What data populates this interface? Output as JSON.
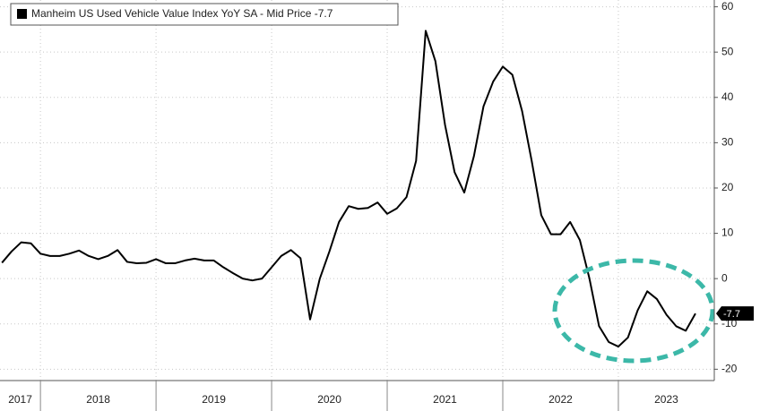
{
  "chart_data": {
    "type": "line",
    "series": [
      {
        "name": "Manheim US Used Vehicle Value Index YoY SA - Mid Price -7.7",
        "color": "#000000",
        "values": [
          3.5,
          6,
          8,
          7.8,
          5.5,
          5,
          5,
          5.5,
          6.2,
          5,
          4.3,
          5,
          6.3,
          3.7,
          3.4,
          3.5,
          4.3,
          3.4,
          3.4,
          4,
          4.4,
          4,
          4,
          2.5,
          1.2,
          0,
          -0.4,
          0,
          2.5,
          5,
          6.3,
          4.5,
          -9,
          0,
          6,
          12.5,
          16,
          15.4,
          15.6,
          16.8,
          14.3,
          15.5,
          18,
          26,
          54.7,
          48,
          34,
          23.5,
          19,
          27,
          38,
          43.5,
          46.8,
          45,
          37,
          26,
          14,
          9.8,
          9.8,
          12.5,
          8.5,
          0,
          -10.5,
          -14,
          -15,
          -13,
          -7,
          -2.8,
          -4.5,
          -8,
          -10.5,
          -11.5,
          -7.7
        ]
      }
    ],
    "x": [
      2017.667,
      2017.75,
      2017.833,
      2017.917,
      2018.0,
      2018.083,
      2018.167,
      2018.25,
      2018.333,
      2018.417,
      2018.5,
      2018.583,
      2018.667,
      2018.75,
      2018.833,
      2018.917,
      2019.0,
      2019.083,
      2019.167,
      2019.25,
      2019.333,
      2019.417,
      2019.5,
      2019.583,
      2019.667,
      2019.75,
      2019.833,
      2019.917,
      2020.0,
      2020.083,
      2020.167,
      2020.25,
      2020.333,
      2020.417,
      2020.5,
      2020.583,
      2020.667,
      2020.75,
      2020.833,
      2020.917,
      2021.0,
      2021.083,
      2021.167,
      2021.25,
      2021.333,
      2021.417,
      2021.5,
      2021.583,
      2021.667,
      2021.75,
      2021.833,
      2021.917,
      2022.0,
      2022.083,
      2022.167,
      2022.25,
      2022.333,
      2022.417,
      2022.5,
      2022.583,
      2022.667,
      2022.75,
      2022.833,
      2022.917,
      2023.0,
      2023.083,
      2023.167,
      2023.25,
      2023.333,
      2023.417,
      2023.5,
      2023.583,
      2023.667
    ],
    "xlim": [
      2017.65,
      2023.83
    ],
    "xticks": [
      2018,
      2019,
      2020,
      2021,
      2022,
      2023
    ],
    "year_labels": [
      "2017",
      "2018",
      "2019",
      "2020",
      "2021",
      "2022",
      "2023"
    ],
    "ylim": [
      -22.5,
      61.5
    ],
    "yticks": [
      -20,
      -10,
      0,
      10,
      20,
      30,
      40,
      50,
      60
    ],
    "grid": true
  }
}
